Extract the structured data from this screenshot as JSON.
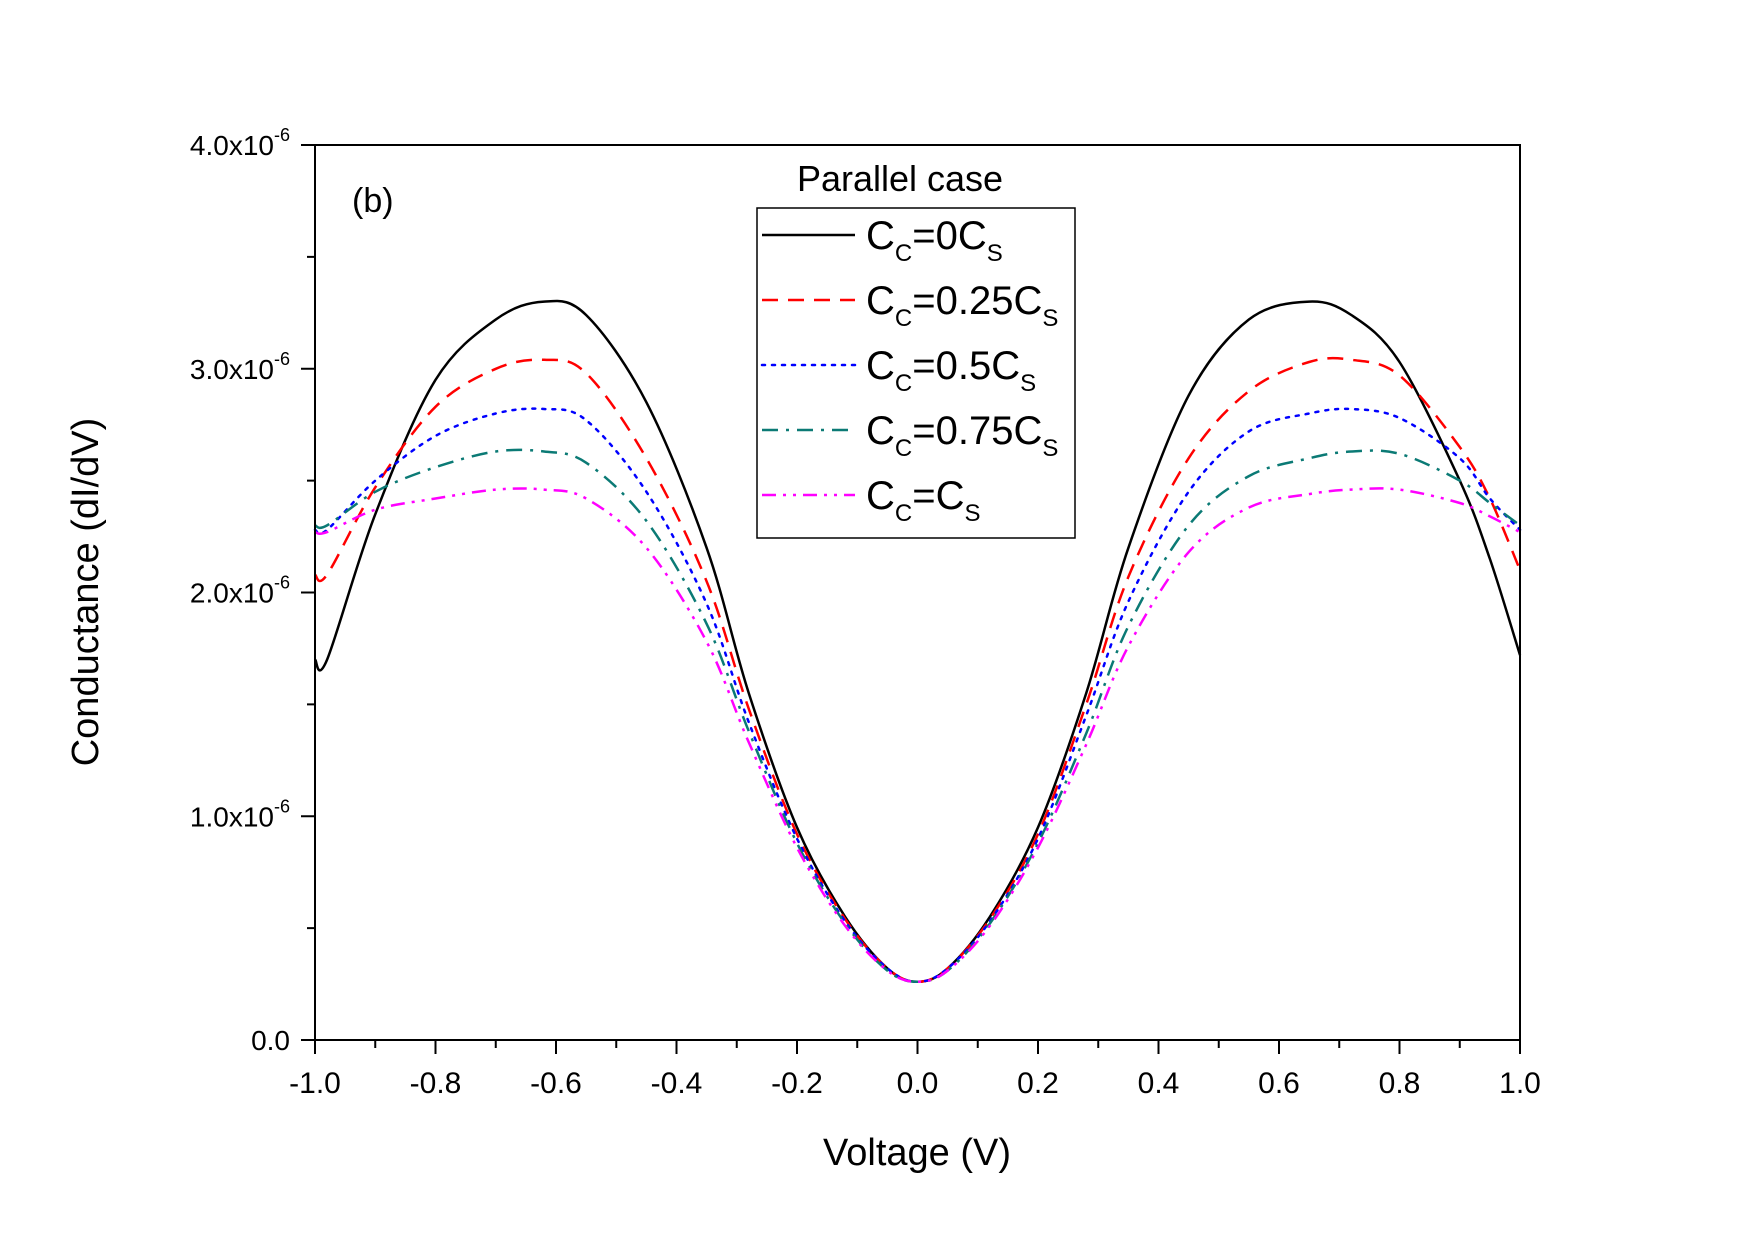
{
  "chart_data": {
    "type": "line",
    "panel_label": "(b)",
    "title": "",
    "xlabel": "Voltage (V)",
    "ylabel": "Conductance (dI/dV)",
    "xlim": [
      -1.0,
      1.0
    ],
    "ylim": [
      0,
      4e-06
    ],
    "x_ticks": [
      -1.0,
      -0.8,
      -0.6,
      -0.4,
      -0.2,
      0.0,
      0.2,
      0.4,
      0.6,
      0.8,
      1.0
    ],
    "x_tick_labels": [
      "-1.0",
      "-0.8",
      "-0.6",
      "-0.4",
      "-0.2",
      "0.0",
      "0.2",
      "0.4",
      "0.6",
      "0.8",
      "1.0"
    ],
    "y_ticks": [
      0,
      1e-06,
      2e-06,
      3e-06,
      4e-06
    ],
    "y_tick_labels": [
      {
        "mantissa": "0.0",
        "exponent": ""
      },
      {
        "mantissa": "1.0x10",
        "exponent": "-6"
      },
      {
        "mantissa": "2.0x10",
        "exponent": "-6"
      },
      {
        "mantissa": "3.0x10",
        "exponent": "-6"
      },
      {
        "mantissa": "4.0x10",
        "exponent": "-6"
      }
    ],
    "legend": {
      "title": "Parallel case",
      "position": "top-center"
    },
    "x": [
      -1.0,
      -0.98,
      -0.9,
      -0.8,
      -0.7,
      -0.62,
      -0.55,
      -0.45,
      -0.35,
      -0.28,
      -0.2,
      -0.12,
      -0.05,
      0.0,
      0.05,
      0.12,
      0.2,
      0.28,
      0.35,
      0.45,
      0.55,
      0.65,
      0.72,
      0.8,
      0.9,
      0.95,
      1.0
    ],
    "series": [
      {
        "name": "C_C=0C_S",
        "label_main": "C",
        "label_sub1": "C",
        "label_mid": "=0C",
        "label_sub2": "S",
        "color": "#000000",
        "dash": "solid",
        "values": [
          1.7e-06,
          1.7e-06,
          2.35e-06,
          2.95e-06,
          3.22e-06,
          3.3e-06,
          3.24e-06,
          2.85e-06,
          2.2e-06,
          1.55e-06,
          9.5e-07,
          5.5e-07,
          3.2e-07,
          2.6e-07,
          3.2e-07,
          5.5e-07,
          9.5e-07,
          1.55e-06,
          2.2e-06,
          2.88e-06,
          3.22e-06,
          3.3e-06,
          3.24e-06,
          3.03e-06,
          2.5e-06,
          2.15e-06,
          1.72e-06
        ]
      },
      {
        "name": "C_C=0.25C_S",
        "label_main": "C",
        "label_sub1": "C",
        "label_mid": "=0.25C",
        "label_sub2": "S",
        "color": "#ff0000",
        "dash": "dashed",
        "values": [
          2.08e-06,
          2.08e-06,
          2.47e-06,
          2.83e-06,
          3e-06,
          3.04e-06,
          2.98e-06,
          2.6e-06,
          2.05e-06,
          1.48e-06,
          9.2e-07,
          5.4e-07,
          3.2e-07,
          2.6e-07,
          3.2e-07,
          5.4e-07,
          9.2e-07,
          1.5e-06,
          2.07e-06,
          2.6e-06,
          2.9e-06,
          3.03e-06,
          3.04e-06,
          2.97e-06,
          2.65e-06,
          2.42e-06,
          2.1e-06
        ]
      },
      {
        "name": "C_C=0.5C_S",
        "label_main": "C",
        "label_sub1": "C",
        "label_mid": "=0.5C",
        "label_sub2": "S",
        "color": "#0000ff",
        "dash": "dotted",
        "values": [
          2.28e-06,
          2.28e-06,
          2.5e-06,
          2.7e-06,
          2.8e-06,
          2.82e-06,
          2.77e-06,
          2.45e-06,
          1.95e-06,
          1.42e-06,
          9e-07,
          5.3e-07,
          3.2e-07,
          2.6e-07,
          3.2e-07,
          5.3e-07,
          9e-07,
          1.45e-06,
          1.96e-06,
          2.45e-06,
          2.72e-06,
          2.8e-06,
          2.82e-06,
          2.78e-06,
          2.6e-06,
          2.42e-06,
          2.28e-06
        ]
      },
      {
        "name": "C_C=0.75C_S",
        "label_main": "C",
        "label_sub1": "C",
        "label_mid": "=0.75C",
        "label_sub2": "S",
        "color": "#0b7a75",
        "dash": "dashdot",
        "values": [
          2.3e-06,
          2.3e-06,
          2.45e-06,
          2.56e-06,
          2.63e-06,
          2.63e-06,
          2.58e-06,
          2.32e-06,
          1.86e-06,
          1.38e-06,
          8.8e-07,
          5.2e-07,
          3.1e-07,
          2.6e-07,
          3.1e-07,
          5.2e-07,
          8.8e-07,
          1.37e-06,
          1.85e-06,
          2.3e-06,
          2.52e-06,
          2.6e-06,
          2.63e-06,
          2.62e-06,
          2.5e-06,
          2.4e-06,
          2.3e-06
        ]
      },
      {
        "name": "C_C=C_S",
        "label_main": "C",
        "label_sub1": "C",
        "label_mid": "=C",
        "label_sub2": "S",
        "color": "#ff00ff",
        "dash": "dashdotdot",
        "values": [
          2.27e-06,
          2.27e-06,
          2.37e-06,
          2.42e-06,
          2.46e-06,
          2.46e-06,
          2.42e-06,
          2.2e-06,
          1.78e-06,
          1.33e-06,
          8.6e-07,
          5.1e-07,
          3.1e-07,
          2.6e-07,
          3.1e-07,
          5.1e-07,
          8.6e-07,
          1.32e-06,
          1.76e-06,
          2.18e-06,
          2.38e-06,
          2.44e-06,
          2.46e-06,
          2.46e-06,
          2.4e-06,
          2.34e-06,
          2.27e-06
        ]
      }
    ]
  }
}
